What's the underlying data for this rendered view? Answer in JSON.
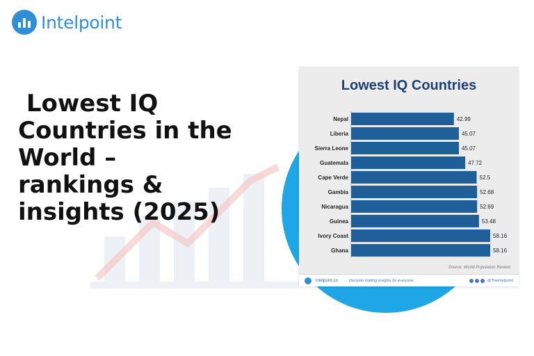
{
  "brand": {
    "name": "Intelpoint"
  },
  "headline": " Lowest IQ\nCountries in the\nWorld –\nrankings &\ninsights (2025)",
  "card": {
    "source": "Source: World Population Review",
    "footer_site": "intelpoint.co",
    "footer_tagline": "Decision making insights for everyone",
    "footer_handle": "@Theintelpoint"
  },
  "colors": {
    "bar": "#1f5f99",
    "title": "#1d3f73",
    "accent": "#2f8fd4",
    "circle": "#1ea6e6"
  },
  "chart_data": {
    "type": "bar",
    "orientation": "horizontal",
    "title": "Lowest IQ Countries",
    "categories": [
      "Nepal",
      "Liberia",
      "Sierra Leone",
      "Guatemala",
      "Cape Verde",
      "Gambia",
      "Nicaragua",
      "Guinea",
      "Ivory Coast",
      "Ghana"
    ],
    "values": [
      42.99,
      45.07,
      45.07,
      47.72,
      52.5,
      52.68,
      52.69,
      53.48,
      58.16,
      58.16
    ],
    "value_labels": [
      "42.99",
      "45.07",
      "45.07",
      "47.72",
      "52.5",
      "52.68",
      "52.69",
      "53.48",
      "58.16",
      "58.16"
    ],
    "xlim": [
      0,
      58.16
    ],
    "grid": false,
    "legend": "none"
  }
}
